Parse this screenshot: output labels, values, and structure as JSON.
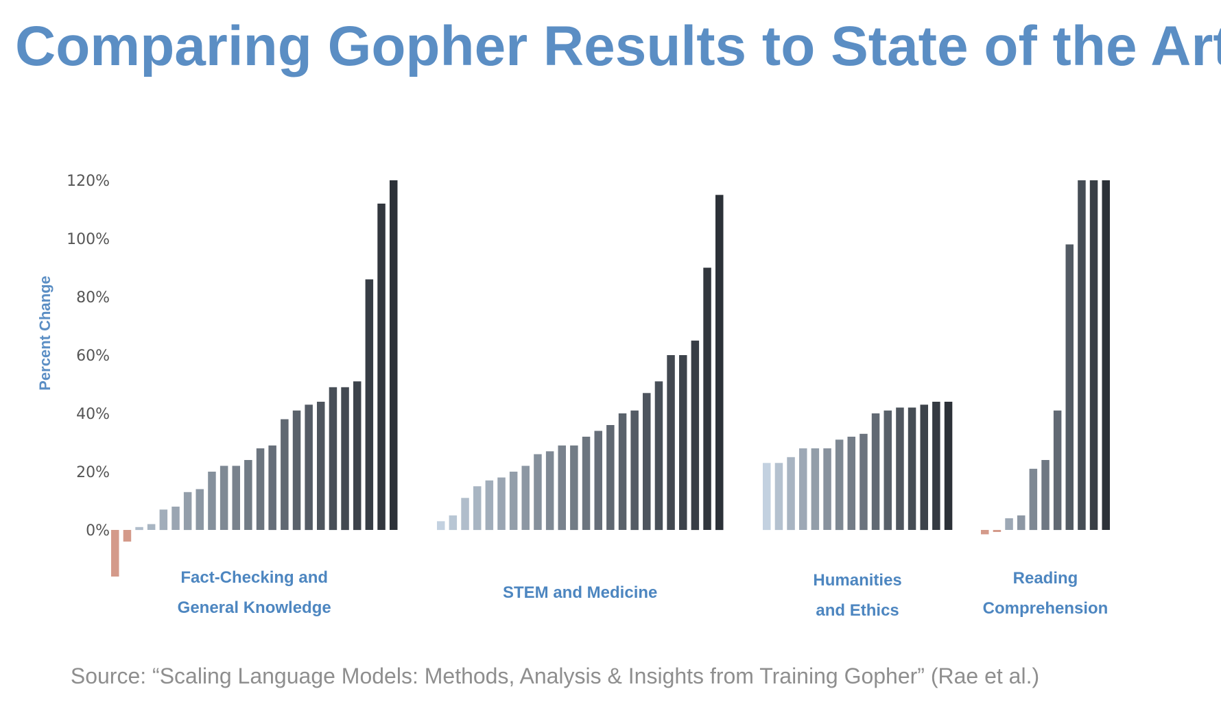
{
  "title": "Comparing Gopher Results to State of the Art",
  "source": "Source: “Scaling Language Models: Methods, Analysis & Insights from Training Gopher” (Rae et al.)",
  "colors": {
    "title": "#5b8ec4",
    "negative": "#d49a8a",
    "bar_light": "#c3d1e0",
    "bar_dark": "#2c3138"
  },
  "chart_data": {
    "type": "bar",
    "ylabel": "Percent Change",
    "yticks": [
      "0%",
      "20%",
      "40%",
      "60%",
      "80%",
      "100%",
      "120%"
    ],
    "ylim": [
      -16,
      120
    ],
    "grid": false,
    "groups": [
      {
        "name": "Fact-Checking and General Knowledge",
        "label_lines": [
          "Fact-Checking and",
          "General Knowledge"
        ],
        "values": [
          -16,
          -4,
          1,
          2,
          7,
          8,
          13,
          14,
          20,
          22,
          22,
          24,
          28,
          29,
          38,
          41,
          43,
          44,
          49,
          49,
          51,
          86,
          112,
          125
        ]
      },
      {
        "name": "STEM and Medicine",
        "label_lines": [
          "STEM and Medicine"
        ],
        "values": [
          3,
          5,
          11,
          15,
          17,
          18,
          20,
          22,
          26,
          27,
          29,
          29,
          32,
          34,
          36,
          40,
          41,
          47,
          51,
          60,
          60,
          65,
          90,
          115
        ]
      },
      {
        "name": "Humanities and Ethics",
        "label_lines": [
          "Humanities",
          "and Ethics"
        ],
        "values": [
          23,
          23,
          25,
          28,
          28,
          28,
          31,
          32,
          33,
          40,
          41,
          42,
          42,
          43,
          44,
          44
        ]
      },
      {
        "name": "Reading Comprehension",
        "label_lines": [
          "Reading",
          "Comprehension"
        ],
        "values": [
          -1.5,
          -0.5,
          4,
          5,
          21,
          24,
          41,
          98,
          125,
          125,
          125
        ]
      }
    ]
  }
}
